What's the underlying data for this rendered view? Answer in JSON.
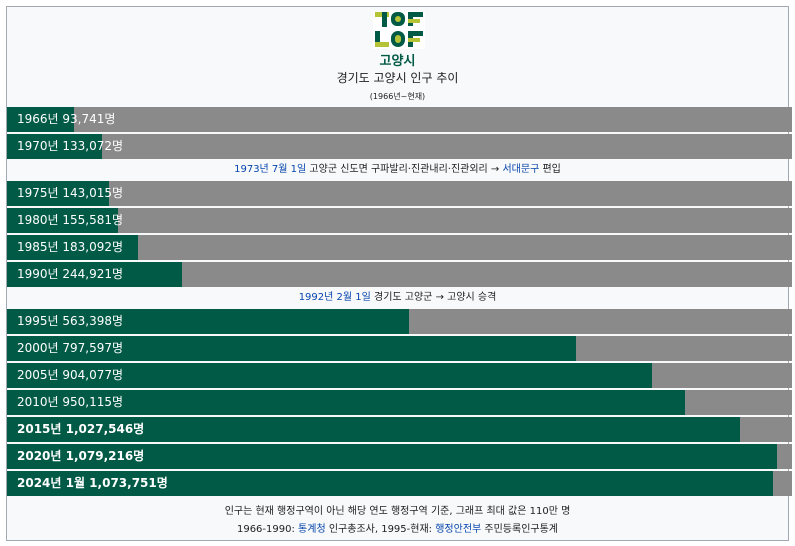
{
  "header": {
    "city_name": "고양시",
    "logo": "goyang-city-logo",
    "colors": {
      "logo_green": "#005a46",
      "logo_yellow": "#b5c437"
    }
  },
  "chart_data": {
    "type": "bar",
    "orientation": "horizontal",
    "title": "경기도 고양시 인구 추이",
    "subtitle": "(1966년~현재)",
    "unit": "명",
    "xlim": [
      0,
      1100000
    ],
    "colors": {
      "bar": "#005a46",
      "track": "#8a8a8a"
    },
    "categories": [
      "1966년",
      "1970년",
      "1975년",
      "1980년",
      "1985년",
      "1990년",
      "1995년",
      "2000년",
      "2005년",
      "2010년",
      "2015년",
      "2020년",
      "2024년 1월"
    ],
    "values": [
      93741,
      133072,
      143015,
      155581,
      183092,
      244921,
      563398,
      797597,
      904077,
      950115,
      1027546,
      1079216,
      1073751
    ],
    "labels": [
      "1966년 93,741명",
      "1970년 133,072명",
      "1975년 143,015명",
      "1980년 155,581명",
      "1985년 183,092명",
      "1990년 244,921명",
      "1995년 563,398명",
      "2000년 797,597명",
      "2005년 904,077명",
      "2010년 950,115명",
      "2015년 1,027,546명",
      "2020년 1,079,216명",
      "2024년 1월 1,073,751명"
    ],
    "bold": [
      false,
      false,
      false,
      false,
      false,
      false,
      false,
      false,
      false,
      false,
      true,
      true,
      true
    ],
    "annotations": [
      {
        "after_index": 1,
        "date": "1973년 7월 1일",
        "text": "고양군 신도면 구파발리·진관내리·진관외리 →",
        "link": "서대문구",
        "suffix": "편입"
      },
      {
        "after_index": 5,
        "date": "1992년 2월 1일",
        "text": "경기도 고양군 → 고양시 승격",
        "link": "",
        "suffix": ""
      }
    ]
  },
  "footer": {
    "note": "인구는 현재 행정구역이 아닌 해당 연도 행정구역 기준, 그래프 최대 값은 110만 명",
    "source_prefix_1": "1966-1990:",
    "source_link_1": "통계청",
    "source_text_1": "인구총조사, 1995-현재:",
    "source_link_2": "행정안전부",
    "source_text_2": "주민등록인구통계"
  }
}
